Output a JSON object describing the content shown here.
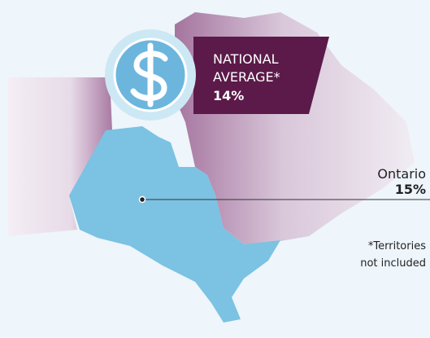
{
  "national_average": {
    "label_lines": [
      "NATIONAL",
      "AVERAGE*"
    ],
    "value": "14%"
  },
  "province": {
    "name": "Ontario",
    "value": "15%"
  },
  "footnote_lines": [
    "*Territories",
    "not included"
  ]
}
